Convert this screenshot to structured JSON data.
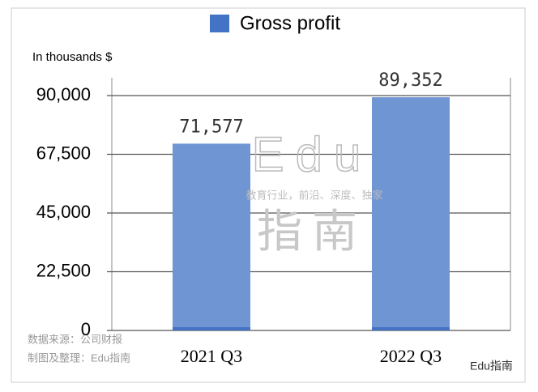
{
  "chart_data": {
    "type": "bar",
    "y_axis_label": "In thousands $",
    "categories": [
      "2021 Q3",
      "2022 Q3"
    ],
    "series": [
      {
        "name": "Gross profit",
        "color": "#6f95d3",
        "values": [
          71577,
          89352
        ],
        "value_labels": [
          "71,577",
          "89,352"
        ]
      }
    ],
    "legend_color": "#4472c4",
    "ylim": [
      0,
      90000
    ],
    "yticks": [
      0,
      {
        "value": 22500,
        "label": "22,500"
      },
      {
        "value": 45000,
        "label": "45,000"
      },
      {
        "value": 67500,
        "label": "67,500"
      },
      {
        "value": 90000,
        "label": "90,000"
      }
    ],
    "grid": true,
    "watermark": [
      "Edu",
      "指南",
      "教育行业，前沿、深度、独家"
    ],
    "source": [
      "数据来源：公司财报",
      "制图及整理：Edu指南"
    ],
    "logo": "Edu指南"
  }
}
